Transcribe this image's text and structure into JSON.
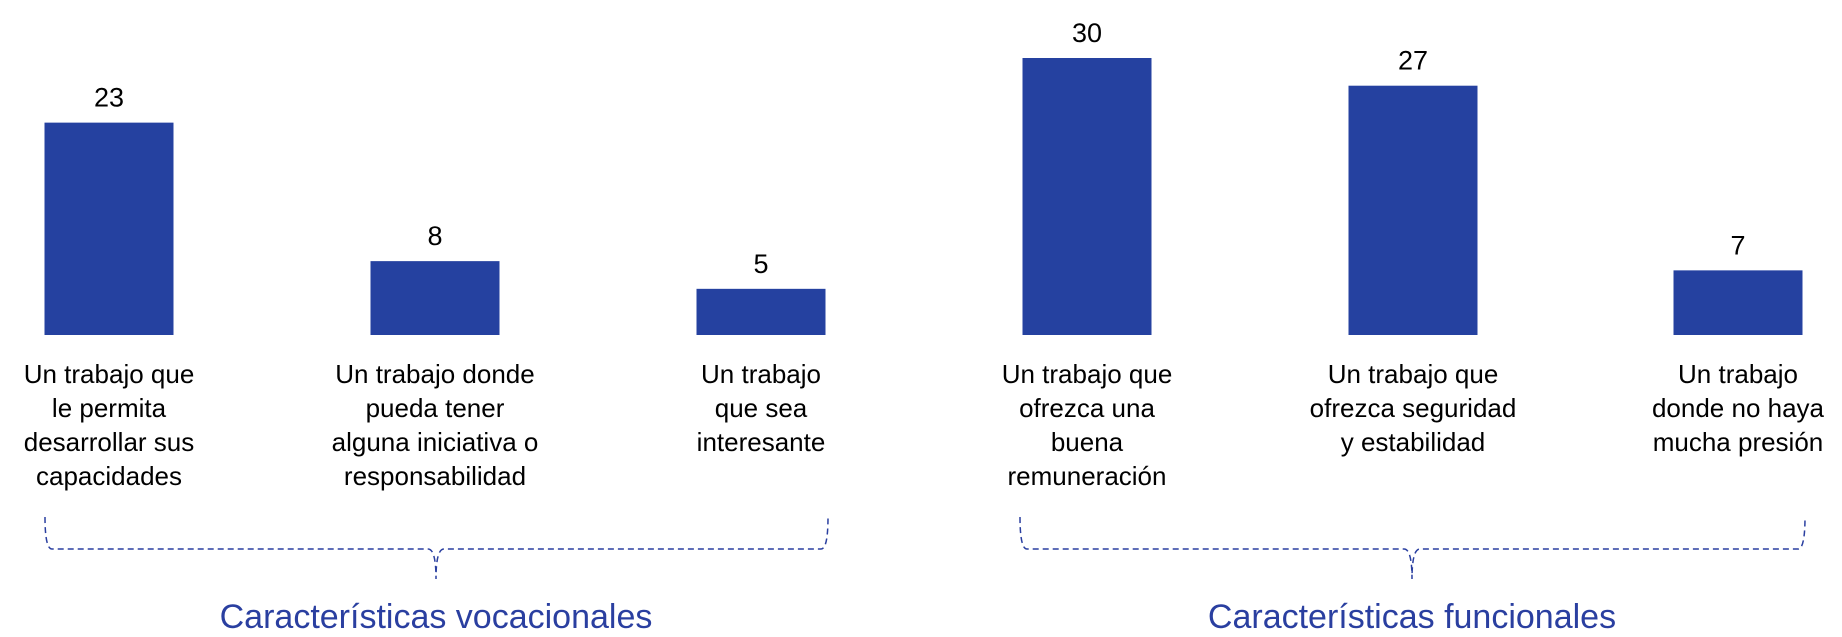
{
  "chart_data": {
    "type": "bar",
    "categories": [
      "Un trabajo que\nle permita\ndesarrollar sus\ncapacidades",
      "Un trabajo donde\npueda tener\nalguna iniciativa o\nresponsabilidad",
      "Un trabajo\nque sea\ninteresante",
      "Un trabajo que\nofrezca una\nbuena\nremuneración",
      "Un trabajo que\nofrezca seguridad\ny estabilidad",
      "Un trabajo\ndonde no haya\nmucha presión"
    ],
    "values": [
      23,
      8,
      5,
      30,
      27,
      7
    ],
    "color": "#2541a0",
    "groups": [
      "Características vocacionales",
      "Características funcionales"
    ]
  }
}
